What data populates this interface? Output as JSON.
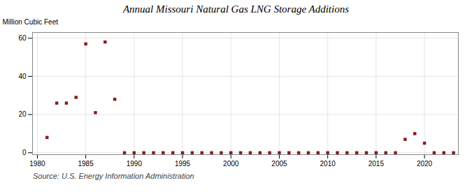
{
  "chart_data": {
    "type": "scatter",
    "title": "Annual Missouri Natural Gas LNG Storage Additions",
    "ylabel": "Million Cubic Feet",
    "source": "Source: U.S. Energy Information Administration",
    "x": [
      1981,
      1982,
      1983,
      1984,
      1985,
      1986,
      1987,
      1988,
      1989,
      1990,
      1991,
      1992,
      1993,
      1994,
      1995,
      1996,
      1997,
      1998,
      1999,
      2000,
      2001,
      2002,
      2003,
      2004,
      2005,
      2006,
      2007,
      2008,
      2009,
      2010,
      2011,
      2012,
      2013,
      2014,
      2015,
      2016,
      2017,
      2018,
      2019,
      2020,
      2021,
      2022,
      2023
    ],
    "values": [
      8,
      26,
      26,
      29,
      57,
      21,
      58,
      28,
      0,
      0,
      0,
      0,
      0,
      0,
      0,
      0,
      0,
      0,
      0,
      0,
      0,
      0,
      0,
      0,
      0,
      0,
      0,
      0,
      0,
      0,
      0,
      0,
      0,
      0,
      0,
      0,
      0,
      7,
      10,
      5,
      0,
      0,
      0
    ],
    "color": "#8b1a1a",
    "marker": "square",
    "xlim": [
      1979.5,
      2023.5
    ],
    "ylim": [
      -1,
      63
    ],
    "xticks": [
      1980,
      1985,
      1990,
      1995,
      2000,
      2005,
      2010,
      2015,
      2020
    ],
    "yticks": [
      0,
      20,
      40,
      60
    ],
    "grid": true
  }
}
